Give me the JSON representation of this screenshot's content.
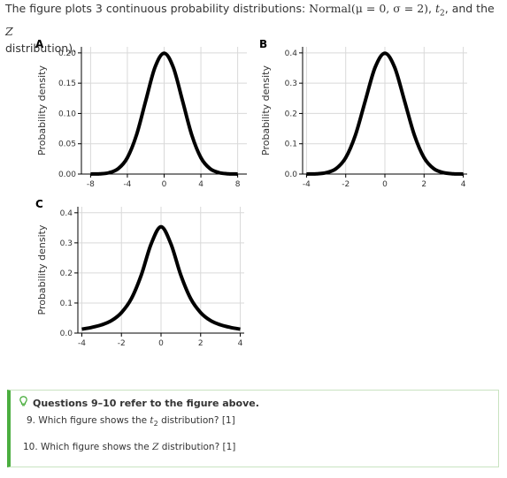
{
  "intro": {
    "prefix": "The figure plots 3 continuous probability distributions: ",
    "normal_word": "Normal",
    "normal_params": "(μ = 0, σ = 2)",
    "t_dist": "t",
    "t_sub": "2",
    "and_the": ", and the ",
    "z_letter": "Z",
    "suffix": "distribution)."
  },
  "questions": {
    "header": "Questions 9–10 refer to the figure above.",
    "q9_prefix": "9. Which figure shows the ",
    "q9_t": "t",
    "q9_sub": "2",
    "q9_suffix": " distribution? [1]",
    "q10_prefix": "10. Which figure shows the ",
    "q10_z": "Z",
    "q10_suffix": " distribution? [1]"
  },
  "colors": {
    "accent": "#4bae3f",
    "curve": "#000000",
    "grid": "#d9d9d9"
  },
  "chart_data": [
    {
      "panel": "A",
      "type": "line",
      "ylabel": "Probability density",
      "xlim": [
        -9,
        9
      ],
      "ylim": [
        0,
        0.21
      ],
      "xticks": [
        -8,
        -4,
        0,
        4,
        8
      ],
      "yticks": [
        0.0,
        0.05,
        0.1,
        0.15,
        0.2
      ],
      "ytick_labels": [
        "0.00",
        "0.05",
        "0.10",
        "0.15",
        "0.20"
      ],
      "grid": true,
      "x": [
        -8,
        -7,
        -6,
        -5,
        -4,
        -3,
        -2,
        -1,
        0,
        1,
        2,
        3,
        4,
        5,
        6,
        7,
        8
      ],
      "y": [
        7e-05,
        0.00044,
        0.0022,
        0.0088,
        0.027,
        0.0648,
        0.121,
        0.176,
        0.1995,
        0.176,
        0.121,
        0.0648,
        0.027,
        0.0088,
        0.0022,
        0.00044,
        7e-05
      ]
    },
    {
      "panel": "B",
      "type": "line",
      "ylabel": "Probability density",
      "xlim": [
        -4.2,
        4.2
      ],
      "ylim": [
        0,
        0.42
      ],
      "xticks": [
        -4,
        -2,
        0,
        2,
        4
      ],
      "yticks": [
        0.0,
        0.1,
        0.2,
        0.3,
        0.4
      ],
      "ytick_labels": [
        "0.0",
        "0.1",
        "0.2",
        "0.3",
        "0.4"
      ],
      "grid": true,
      "x": [
        -4,
        -3.5,
        -3,
        -2.5,
        -2,
        -1.5,
        -1,
        -0.5,
        0,
        0.5,
        1,
        1.5,
        2,
        2.5,
        3,
        3.5,
        4
      ],
      "y": [
        0.00013,
        0.00087,
        0.0044,
        0.0175,
        0.054,
        0.1295,
        0.242,
        0.352,
        0.399,
        0.352,
        0.242,
        0.1295,
        0.054,
        0.0175,
        0.0044,
        0.00087,
        0.00013
      ]
    },
    {
      "panel": "C",
      "type": "line",
      "ylabel": "Probability density",
      "xlim": [
        -4.2,
        4.2
      ],
      "ylim": [
        0,
        0.42
      ],
      "xticks": [
        -4,
        -2,
        0,
        2,
        4
      ],
      "yticks": [
        0.0,
        0.1,
        0.2,
        0.3,
        0.4
      ],
      "ytick_labels": [
        "0.0",
        "0.1",
        "0.2",
        "0.3",
        "0.4"
      ],
      "grid": true,
      "x": [
        -4,
        -3.5,
        -3,
        -2.5,
        -2,
        -1.5,
        -1,
        -0.5,
        0,
        0.5,
        1,
        1.5,
        2,
        2.5,
        3,
        3.5,
        4
      ],
      "y": [
        0.0131,
        0.019,
        0.0274,
        0.0416,
        0.068,
        0.1142,
        0.1925,
        0.2963,
        0.3536,
        0.2963,
        0.1925,
        0.1142,
        0.068,
        0.0416,
        0.0274,
        0.019,
        0.0131
      ]
    }
  ]
}
